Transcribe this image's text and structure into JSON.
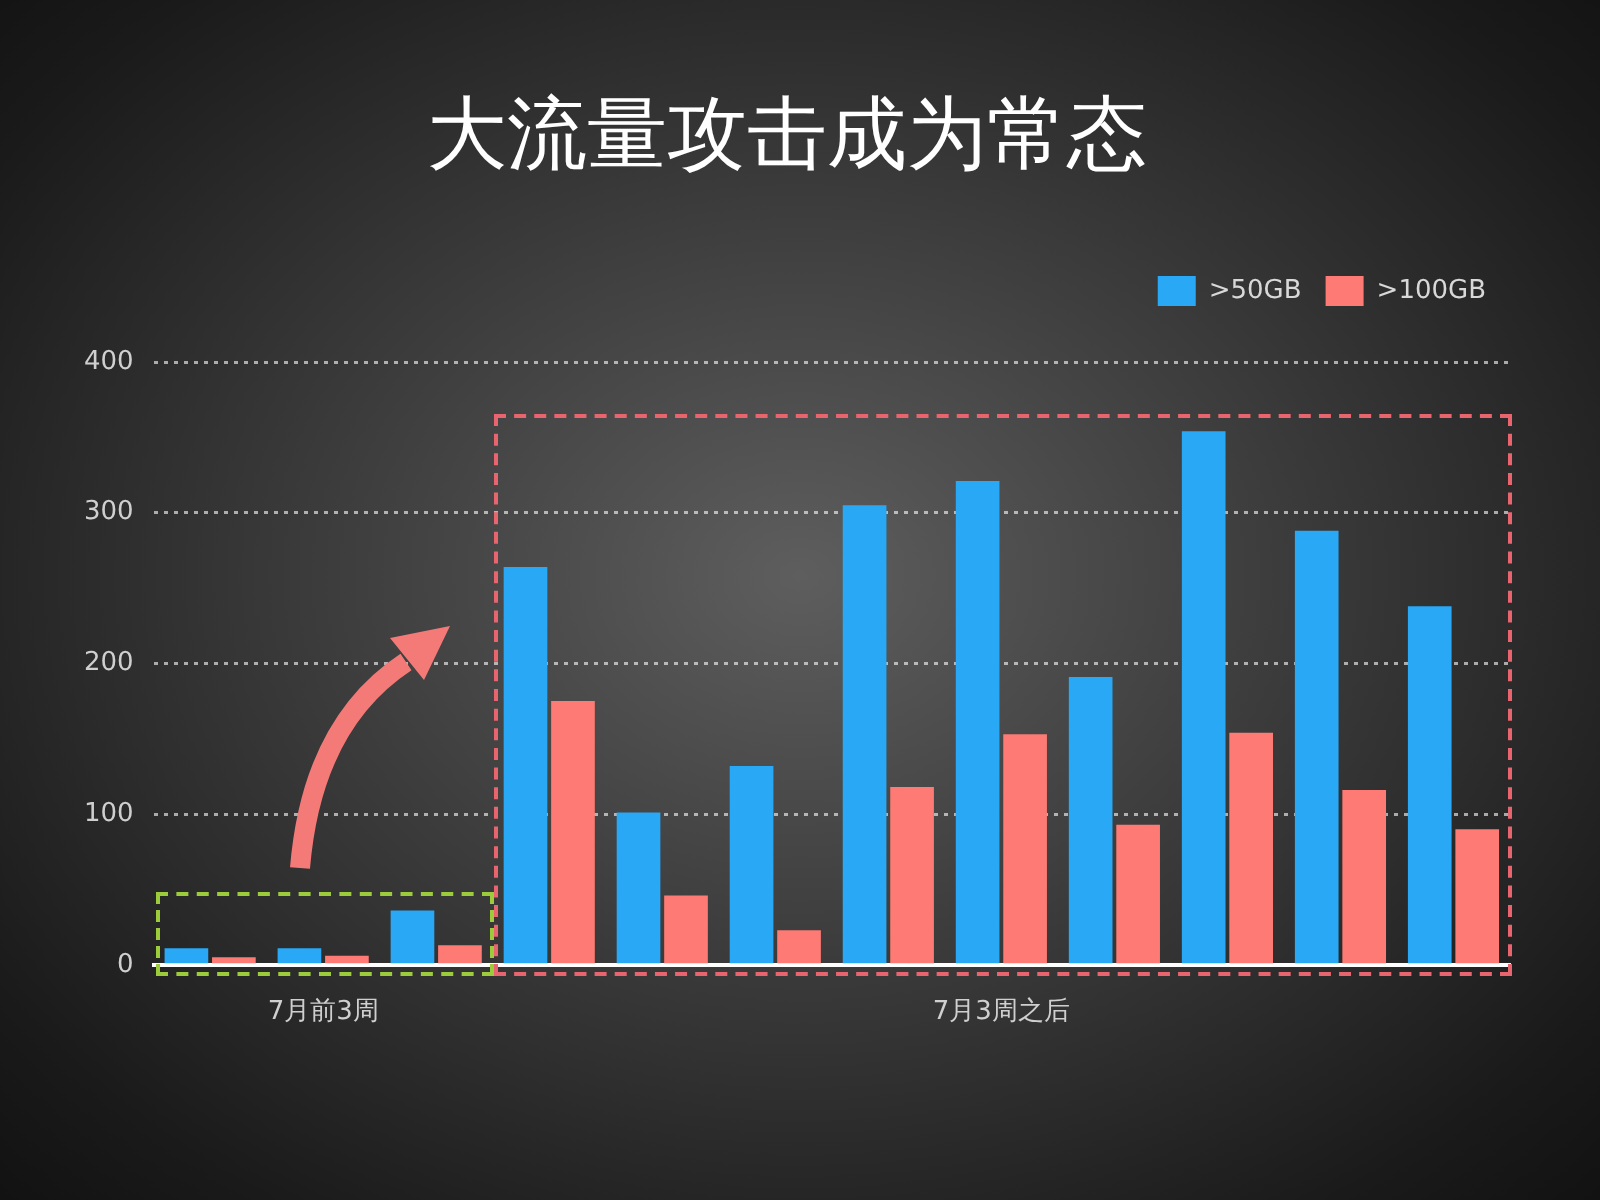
{
  "chart_data": {
    "type": "bar",
    "title": "大流量攻击成为常态",
    "categories": [
      null,
      "7月前3周",
      null,
      null,
      null,
      null,
      null,
      "7月3周之后",
      null,
      null,
      null,
      null
    ],
    "series": [
      {
        "name": ">50GB",
        "color": "#29a8f5",
        "values": [
          11,
          11,
          36,
          264,
          101,
          132,
          305,
          321,
          191,
          354,
          288,
          238
        ]
      },
      {
        "name": ">100GB",
        "color": "#fd7b74",
        "values": [
          5,
          6,
          13,
          175,
          46,
          23,
          118,
          153,
          93,
          154,
          116,
          90
        ]
      }
    ],
    "ylim": [
      0,
      400
    ],
    "yticks": [
      0,
      100,
      200,
      300,
      400
    ],
    "grid": "y",
    "legend": "top right"
  }
}
